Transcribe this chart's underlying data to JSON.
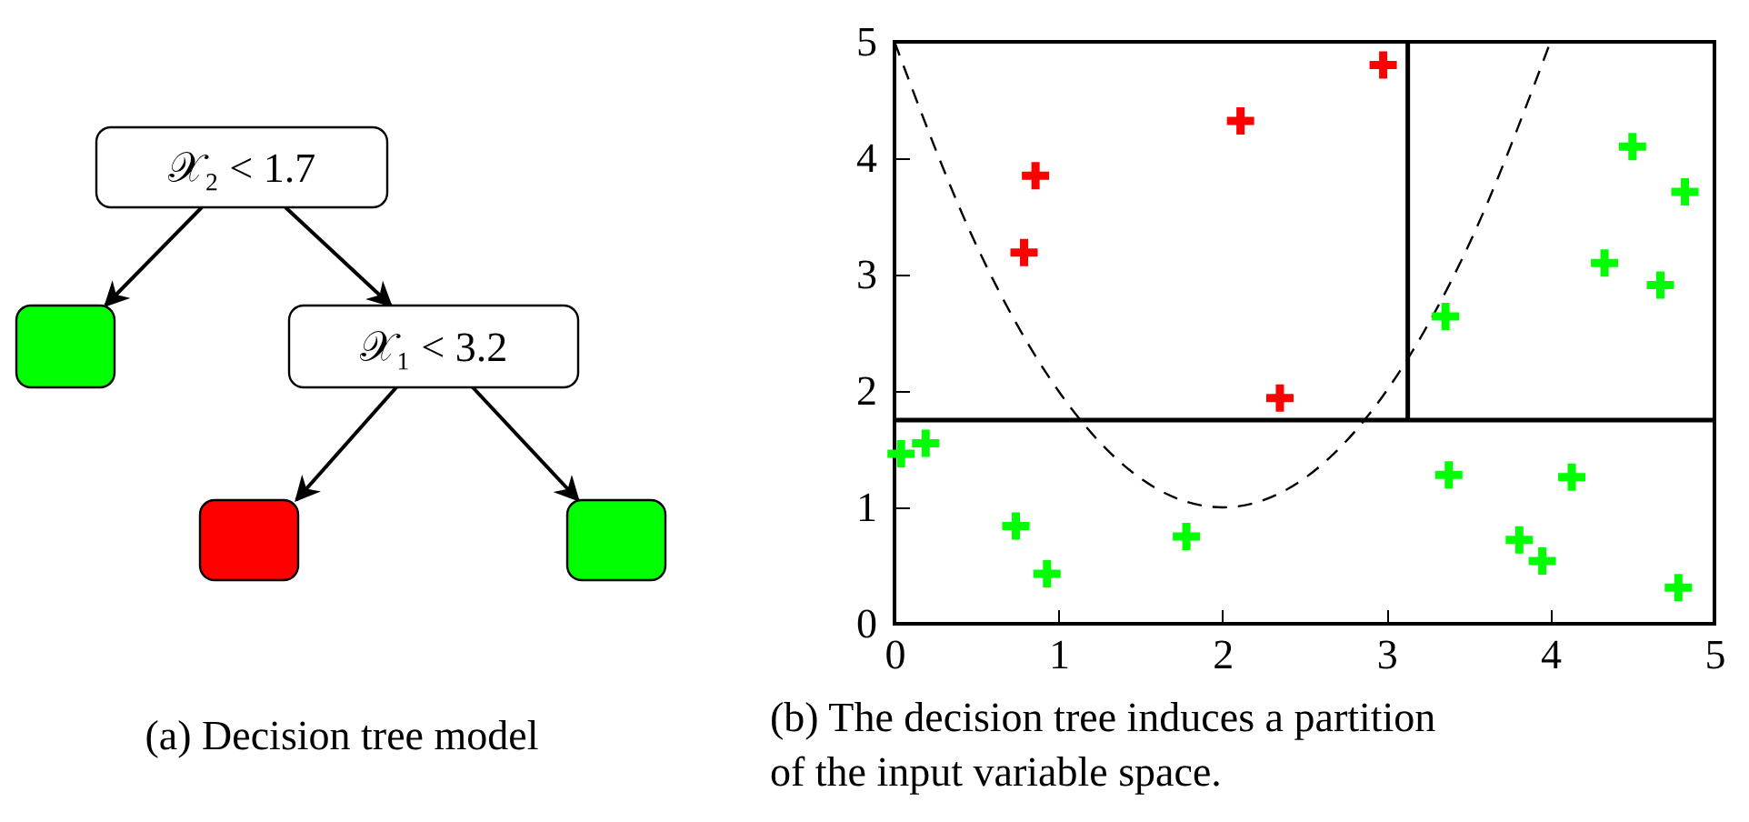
{
  "chart_data": [
    {
      "type": "other",
      "title": "(a) Decision tree model",
      "annotations": [
        "𝒳₂ < 1.7",
        "𝒳₁ < 3.2"
      ]
    },
    {
      "type": "scatter",
      "title": "(b) The decision tree induces a partition of the input variable space.",
      "xlim": [
        0,
        5
      ],
      "ylim": [
        0,
        5
      ],
      "xticks": [
        0,
        1,
        2,
        3,
        4,
        5
      ],
      "yticks": [
        0,
        1,
        2,
        3,
        4,
        5
      ],
      "grid": false,
      "series": [
        {
          "marker": "cross",
          "color": "#ff0000",
          "x": [
            2.98,
            2.11,
            0.86,
            0.79,
            2.35
          ],
          "values": [
            4.8,
            4.32,
            3.85,
            3.19,
            1.94
          ]
        },
        {
          "marker": "cross",
          "color": "#00ff00",
          "x": [
            4.5,
            4.82,
            4.33,
            4.67,
            3.36,
            0.04,
            0.19,
            0.74,
            0.93,
            1.78,
            3.38,
            4.13,
            3.81,
            3.95,
            4.78
          ],
          "values": [
            4.1,
            3.71,
            3.1,
            2.91,
            2.64,
            1.46,
            1.55,
            0.84,
            0.43,
            0.75,
            1.28,
            1.26,
            0.72,
            0.54,
            0.31
          ]
        },
        {
          "type": "line",
          "color": "#000000",
          "line_style": "solid",
          "x": [
            0,
            5
          ],
          "values": [
            1.75,
            1.75
          ]
        },
        {
          "type": "line",
          "color": "#000000",
          "line_style": "solid",
          "x": [
            3.13,
            3.13
          ],
          "values": [
            1.75,
            5
          ]
        },
        {
          "type": "line",
          "color": "#000000",
          "line_style": "dashed",
          "x": [
            0,
            0.5,
            1,
            1.5,
            2,
            2.5,
            3,
            3.5,
            4
          ],
          "values": [
            5,
            3.25,
            2,
            1.25,
            1,
            1.25,
            2,
            3.25,
            5
          ]
        }
      ]
    }
  ]
}
